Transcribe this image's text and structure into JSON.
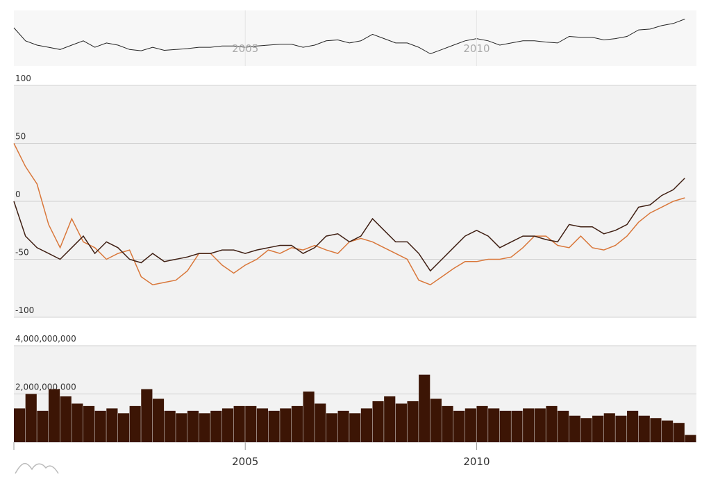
{
  "chart_data": [
    {
      "type": "line",
      "x": [
        2000,
        2000.25,
        2000.5,
        2000.75,
        2001,
        2001.25,
        2001.5,
        2001.75,
        2002,
        2002.25,
        2002.5,
        2002.75,
        2003,
        2003.25,
        2003.5,
        2003.75,
        2004,
        2004.25,
        2004.5,
        2004.75,
        2005,
        2005.25,
        2005.5,
        2005.75,
        2006,
        2006.25,
        2006.5,
        2006.75,
        2007,
        2007.25,
        2007.5,
        2007.75,
        2008,
        2008.25,
        2008.5,
        2008.75,
        2009,
        2009.25,
        2009.5,
        2009.75,
        2010,
        2010.25,
        2010.5,
        2010.75,
        2011,
        2011.25,
        2011.5,
        2011.75,
        2012,
        2012.25,
        2012.5,
        2012.75,
        2013,
        2013.25,
        2013.5,
        2013.75,
        2014,
        2014.25,
        2014.5
      ],
      "series": [
        {
          "color": "#d9773a",
          "values": [
            50,
            30,
            15,
            -20,
            -40,
            -15,
            -35,
            -40,
            -50,
            -45,
            -42,
            -65,
            -72,
            -70,
            -68,
            -60,
            -45,
            -45,
            -55,
            -62,
            -55,
            -50,
            -42,
            -45,
            -40,
            -42,
            -38,
            -42,
            -45,
            -35,
            -32,
            -35,
            -40,
            -45,
            -50,
            -68,
            -72,
            -65,
            -58,
            -52,
            -52,
            -50,
            -50,
            -48,
            -40,
            -30,
            -30,
            -38,
            -40,
            -30,
            -40,
            -42,
            -38,
            -30,
            -18,
            -10,
            -5,
            0,
            3
          ]
        },
        {
          "color": "#3f1f13",
          "values": [
            0,
            -30,
            -40,
            -45,
            -50,
            -40,
            -30,
            -45,
            -35,
            -40,
            -50,
            -53,
            -45,
            -52,
            -50,
            -48,
            -45,
            -45,
            -42,
            -42,
            -45,
            -42,
            -40,
            -38,
            -38,
            -45,
            -40,
            -30,
            -28,
            -35,
            -30,
            -15,
            -25,
            -35,
            -35,
            -45,
            -60,
            -50,
            -40,
            -30,
            -25,
            -30,
            -40,
            -35,
            -30,
            -30,
            -33,
            -35,
            -20,
            -22,
            -22,
            -28,
            -25,
            -20,
            -5,
            -3,
            5,
            10,
            20
          ]
        }
      ],
      "xlim": [
        2000,
        2014.75
      ],
      "xticks": [
        2005,
        2010
      ],
      "ylim": [
        -100,
        100
      ],
      "yticks": [
        -100,
        -50,
        0,
        50,
        100
      ],
      "grid": true
    },
    {
      "type": "bar",
      "color": "#3c1505",
      "values": [
        1400000000,
        2000000000,
        1300000000,
        2200000000,
        1900000000,
        1600000000,
        1500000000,
        1300000000,
        1400000000,
        1200000000,
        1500000000,
        2200000000,
        1800000000,
        1300000000,
        1200000000,
        1300000000,
        1200000000,
        1300000000,
        1400000000,
        1500000000,
        1500000000,
        1400000000,
        1300000000,
        1400000000,
        1500000000,
        2100000000,
        1600000000,
        1200000000,
        1300000000,
        1200000000,
        1400000000,
        1700000000,
        1900000000,
        1600000000,
        1700000000,
        2800000000,
        1800000000,
        1500000000,
        1300000000,
        1400000000,
        1500000000,
        1400000000,
        1300000000,
        1300000000,
        1400000000,
        1400000000,
        1500000000,
        1300000000,
        1100000000,
        1000000000,
        1100000000,
        1200000000,
        1100000000,
        1300000000,
        1100000000,
        1000000000,
        900000000,
        800000000,
        300000000
      ],
      "ylim": [
        0,
        4000000000
      ],
      "yticks": [
        0,
        {
          "value": 2000000000,
          "label": "2,000,000,000"
        },
        {
          "value": 4000000000,
          "label": "4,000,000,000"
        }
      ],
      "grid": true
    }
  ]
}
